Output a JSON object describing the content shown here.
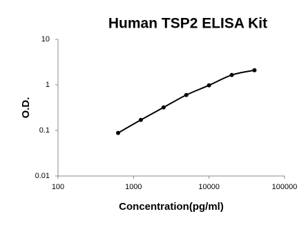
{
  "chart_data": {
    "type": "scatter",
    "title": "Human TSP2 ELISA Kit",
    "x_label": "Concentration(pg/ml)",
    "y_label": "O.D.",
    "x": [
      625,
      1250,
      2500,
      5000,
      10000,
      20000,
      40000
    ],
    "values": [
      0.088,
      0.17,
      0.32,
      0.6,
      0.98,
      1.65,
      2.1
    ],
    "color": "#000000",
    "fit_line": true,
    "x_scale": "log",
    "y_scale": "log",
    "xlim": [
      100,
      100000
    ],
    "xticks": [
      100,
      1000,
      10000,
      100000
    ],
    "ylim": [
      0.01,
      10
    ],
    "yticks": [
      0.01,
      0.1,
      1,
      10
    ],
    "grid": false
  }
}
